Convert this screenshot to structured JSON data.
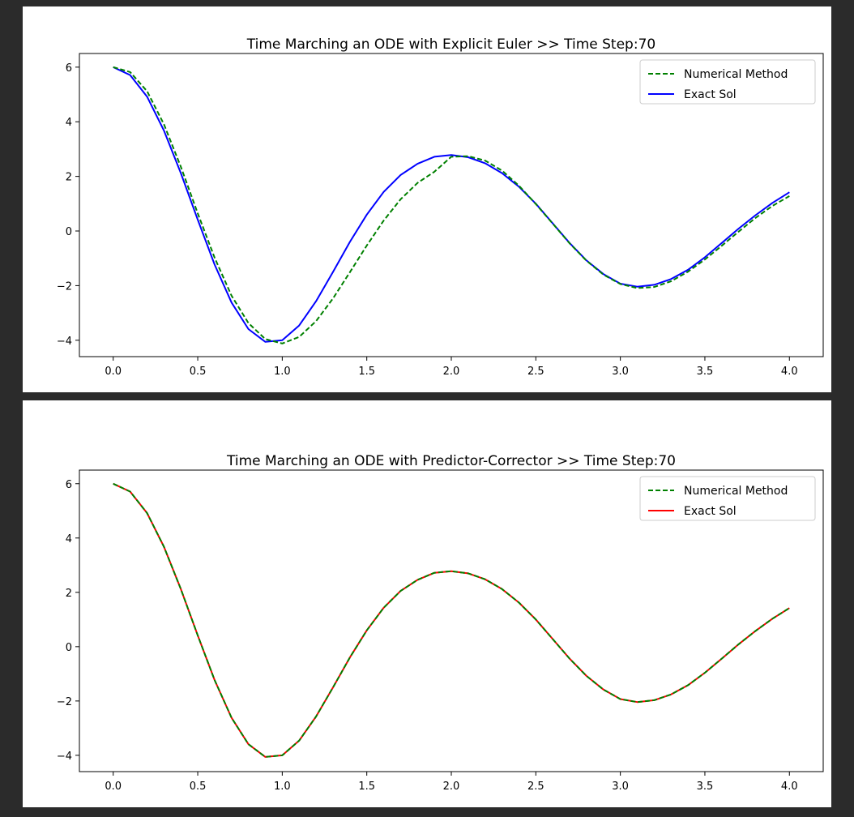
{
  "chart_data": [
    {
      "type": "line",
      "title": "Time Marching an ODE with Explicit Euler >> Time Step:70",
      "xlabel": "",
      "ylabel": "",
      "xlim": [
        -0.2,
        4.2
      ],
      "ylim": [
        -4.6,
        6.5
      ],
      "xticks": [
        "0.0",
        "0.5",
        "1.0",
        "1.5",
        "2.0",
        "2.5",
        "3.0",
        "3.5",
        "4.0"
      ],
      "yticks": [
        "−4",
        "−2",
        "0",
        "2",
        "4",
        "6"
      ],
      "legend_position": "top-right",
      "series": [
        {
          "name": "Numerical Method",
          "color": "#008000",
          "style": "dashed",
          "x": [
            0.0,
            0.1,
            0.2,
            0.3,
            0.4,
            0.5,
            0.6,
            0.7,
            0.8,
            0.9,
            1.0,
            1.1,
            1.2,
            1.3,
            1.4,
            1.5,
            1.6,
            1.7,
            1.8,
            1.9,
            2.0,
            2.1,
            2.2,
            2.3,
            2.4,
            2.5,
            2.6,
            2.7,
            2.8,
            2.9,
            3.0,
            3.1,
            3.2,
            3.3,
            3.4,
            3.5,
            3.6,
            3.7,
            3.8,
            3.9,
            4.0
          ],
          "y": [
            6.0,
            5.82,
            5.12,
            3.91,
            2.35,
            0.65,
            -0.98,
            -2.37,
            -3.37,
            -3.96,
            -4.12,
            -3.88,
            -3.3,
            -2.47,
            -1.51,
            -0.53,
            0.38,
            1.16,
            1.76,
            2.17,
            2.72,
            2.74,
            2.58,
            2.21,
            1.66,
            0.99,
            0.27,
            -0.45,
            -1.09,
            -1.6,
            -1.94,
            -2.09,
            -2.05,
            -1.84,
            -1.49,
            -1.04,
            -0.54,
            -0.02,
            0.48,
            0.92,
            1.28
          ]
        },
        {
          "name": "Exact Sol",
          "color": "#0000ff",
          "style": "solid",
          "x": [
            0.0,
            0.1,
            0.2,
            0.3,
            0.4,
            0.5,
            0.6,
            0.7,
            0.8,
            0.9,
            1.0,
            1.1,
            1.2,
            1.3,
            1.4,
            1.5,
            1.6,
            1.7,
            1.8,
            1.9,
            2.0,
            2.1,
            2.2,
            2.3,
            2.4,
            2.5,
            2.6,
            2.7,
            2.8,
            2.9,
            3.0,
            3.1,
            3.2,
            3.3,
            3.4,
            3.5,
            3.6,
            3.7,
            3.8,
            3.9,
            4.0
          ],
          "y": [
            6.0,
            5.71,
            4.92,
            3.68,
            2.12,
            0.42,
            -1.23,
            -2.62,
            -3.59,
            -4.06,
            -4.0,
            -3.46,
            -2.57,
            -1.5,
            -0.4,
            0.6,
            1.43,
            2.05,
            2.46,
            2.72,
            2.78,
            2.7,
            2.48,
            2.12,
            1.62,
            1.0,
            0.28,
            -0.44,
            -1.08,
            -1.58,
            -1.93,
            -2.04,
            -1.97,
            -1.76,
            -1.42,
            -0.96,
            -0.44,
            0.09,
            0.58,
            1.03,
            1.42
          ]
        }
      ]
    },
    {
      "type": "line",
      "title": "Time Marching an ODE with Predictor-Corrector >> Time Step:70",
      "xlabel": "",
      "ylabel": "",
      "xlim": [
        -0.2,
        4.2
      ],
      "ylim": [
        -4.6,
        6.5
      ],
      "xticks": [
        "0.0",
        "0.5",
        "1.0",
        "1.5",
        "2.0",
        "2.5",
        "3.0",
        "3.5",
        "4.0"
      ],
      "yticks": [
        "−4",
        "−2",
        "0",
        "2",
        "4",
        "6"
      ],
      "legend_position": "top-right",
      "series": [
        {
          "name": "Numerical Method",
          "color": "#008000",
          "style": "dashed",
          "x": [
            0.0,
            0.1,
            0.2,
            0.3,
            0.4,
            0.5,
            0.6,
            0.7,
            0.8,
            0.9,
            1.0,
            1.1,
            1.2,
            1.3,
            1.4,
            1.5,
            1.6,
            1.7,
            1.8,
            1.9,
            2.0,
            2.1,
            2.2,
            2.3,
            2.4,
            2.5,
            2.6,
            2.7,
            2.8,
            2.9,
            3.0,
            3.1,
            3.2,
            3.3,
            3.4,
            3.5,
            3.6,
            3.7,
            3.8,
            3.9,
            4.0
          ],
          "y": [
            6.0,
            5.71,
            4.92,
            3.68,
            2.12,
            0.42,
            -1.23,
            -2.62,
            -3.59,
            -4.06,
            -4.0,
            -3.46,
            -2.57,
            -1.5,
            -0.4,
            0.6,
            1.43,
            2.05,
            2.46,
            2.72,
            2.78,
            2.7,
            2.48,
            2.12,
            1.62,
            1.0,
            0.28,
            -0.44,
            -1.08,
            -1.58,
            -1.93,
            -2.04,
            -1.97,
            -1.76,
            -1.42,
            -0.96,
            -0.44,
            0.09,
            0.58,
            1.03,
            1.42
          ]
        },
        {
          "name": "Exact Sol",
          "color": "#ff0000",
          "style": "solid",
          "x": [
            0.0,
            0.1,
            0.2,
            0.3,
            0.4,
            0.5,
            0.6,
            0.7,
            0.8,
            0.9,
            1.0,
            1.1,
            1.2,
            1.3,
            1.4,
            1.5,
            1.6,
            1.7,
            1.8,
            1.9,
            2.0,
            2.1,
            2.2,
            2.3,
            2.4,
            2.5,
            2.6,
            2.7,
            2.8,
            2.9,
            3.0,
            3.1,
            3.2,
            3.3,
            3.4,
            3.5,
            3.6,
            3.7,
            3.8,
            3.9,
            4.0
          ],
          "y": [
            6.0,
            5.71,
            4.92,
            3.68,
            2.12,
            0.42,
            -1.23,
            -2.62,
            -3.59,
            -4.06,
            -4.0,
            -3.46,
            -2.57,
            -1.5,
            -0.4,
            0.6,
            1.43,
            2.05,
            2.46,
            2.72,
            2.78,
            2.7,
            2.48,
            2.12,
            1.62,
            1.0,
            0.28,
            -0.44,
            -1.08,
            -1.58,
            -1.93,
            -2.04,
            -1.97,
            -1.76,
            -1.42,
            -0.96,
            -0.44,
            0.09,
            0.58,
            1.03,
            1.42
          ]
        }
      ]
    }
  ]
}
